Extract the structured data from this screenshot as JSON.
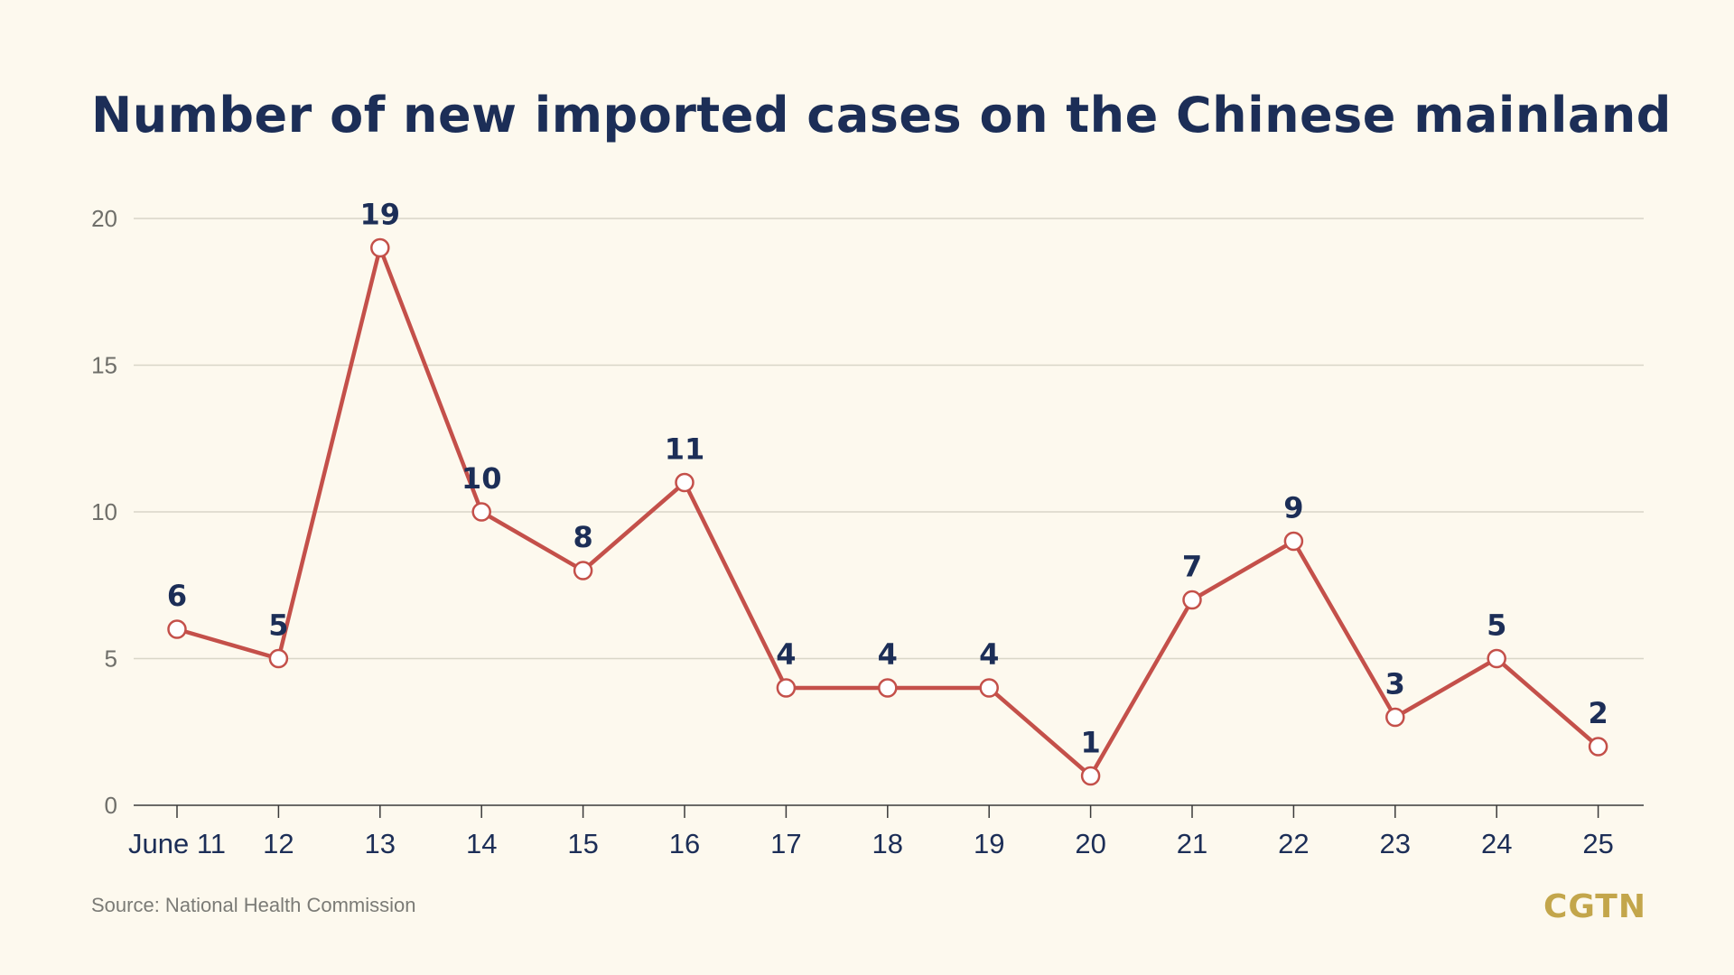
{
  "title": "Number of new imported cases on the Chinese mainland",
  "source": "Source: National Health Commission",
  "logo": "CGTN",
  "colors": {
    "background": "#fdf9ee",
    "title": "#1c2e57",
    "line": "#c4504a",
    "grid": "#d9d6c8",
    "axis_text": "#6f6f6a",
    "logo": "#c3a64b"
  },
  "chart_data": {
    "type": "line",
    "title": "Number of new imported cases on the Chinese mainland",
    "xlabel": "",
    "ylabel": "",
    "categories": [
      "June 11",
      "12",
      "13",
      "14",
      "15",
      "16",
      "17",
      "18",
      "19",
      "20",
      "21",
      "22",
      "23",
      "24",
      "25"
    ],
    "values": [
      6,
      5,
      19,
      10,
      8,
      11,
      4,
      4,
      4,
      1,
      7,
      9,
      3,
      5,
      2
    ],
    "ylim": [
      0,
      20
    ],
    "yticks": [
      0,
      5,
      10,
      15,
      20
    ],
    "grid": true,
    "data_labels": true,
    "legend": "none"
  }
}
